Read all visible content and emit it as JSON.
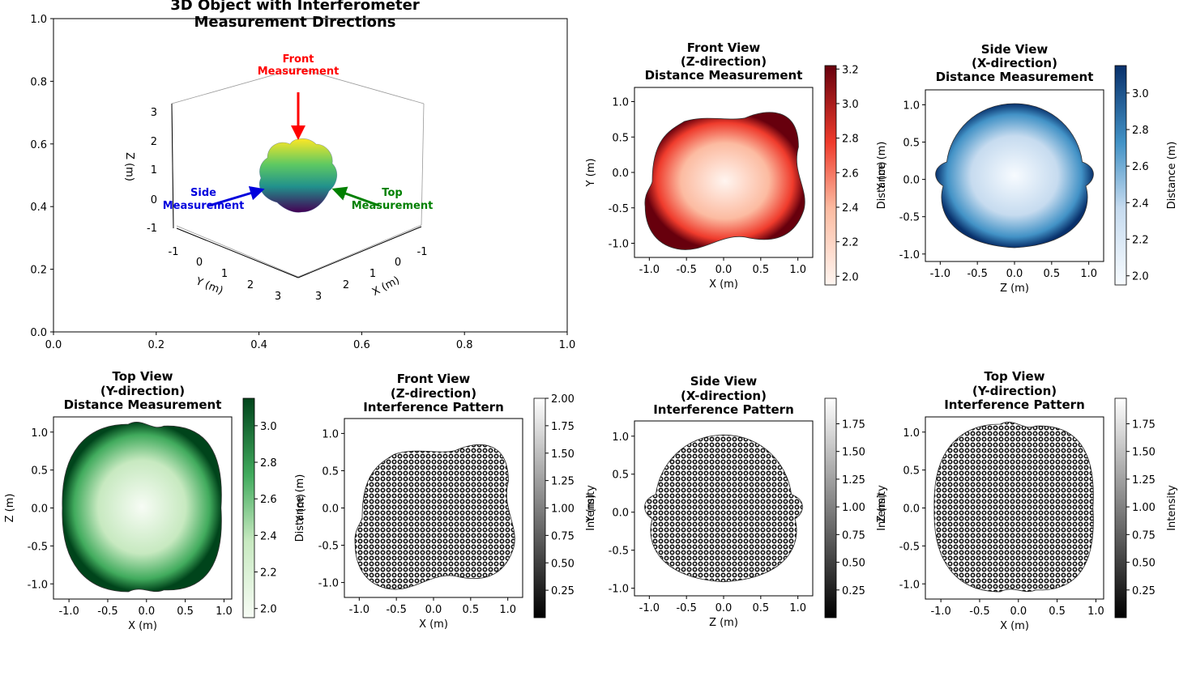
{
  "chart_data": [
    {
      "type": "surface3d",
      "title": [
        "3D Object with Interferometer",
        "Measurement Directions"
      ],
      "outer_axes": {
        "xlim": [
          0,
          1
        ],
        "ylim": [
          0,
          1
        ],
        "xticks": [
          "0.0",
          "0.2",
          "0.4",
          "0.6",
          "0.8",
          "1.0"
        ],
        "yticks": [
          "0.0",
          "0.2",
          "0.4",
          "0.6",
          "0.8",
          "1.0"
        ]
      },
      "axes3d": {
        "xlabel": "X (m)",
        "ylabel": "Y (m)",
        "zlabel": "Z (m)",
        "xticks": [
          "-1",
          "0",
          "1",
          "2",
          "3"
        ],
        "yticks": [
          "-1",
          "0",
          "1",
          "2",
          "3"
        ],
        "zticks": [
          "-1",
          "0",
          "1",
          "2",
          "3"
        ]
      },
      "annotations": [
        {
          "text": [
            "Front",
            "Measurement"
          ],
          "color": "#ff0000"
        },
        {
          "text": [
            "Side",
            "Measurement"
          ],
          "color": "#0000dd"
        },
        {
          "text": [
            "Top",
            "Measurement"
          ],
          "color": "#008000"
        }
      ]
    },
    {
      "type": "heatmap",
      "title": [
        "Front View",
        "(Z-direction)",
        "Distance Measurement"
      ],
      "xlabel": "X (m)",
      "ylabel": "Y (m)",
      "xlim": [
        -1.2,
        1.2
      ],
      "ylim": [
        -1.2,
        1.2
      ],
      "xticks": [
        "-1.0",
        "-0.5",
        "0.0",
        "0.5",
        "1.0"
      ],
      "yticks": [
        "1.0",
        "0.5",
        "0.0",
        "-0.5",
        "-1.0"
      ],
      "colorbar": {
        "label": "Distance (m)",
        "range": [
          1.95,
          3.22
        ],
        "ticks": [
          "3.2",
          "3.0",
          "2.8",
          "2.6",
          "2.4",
          "2.2",
          "2.0"
        ],
        "tick_values": [
          3.2,
          3.0,
          2.8,
          2.6,
          2.4,
          2.2,
          2.0
        ],
        "colormap": "Reds"
      }
    },
    {
      "type": "heatmap",
      "title": [
        "Side View",
        "(X-direction)",
        "Distance Measurement"
      ],
      "xlabel": "Z (m)",
      "ylabel": "Y (m)",
      "xlim": [
        -1.2,
        1.2
      ],
      "ylim": [
        -1.1,
        1.2
      ],
      "xticks": [
        "-1.0",
        "-0.5",
        "0.0",
        "0.5",
        "1.0"
      ],
      "yticks": [
        "1.0",
        "0.5",
        "0.0",
        "-0.5",
        "-1.0"
      ],
      "colorbar": {
        "label": "Distance (m)",
        "range": [
          1.95,
          3.15
        ],
        "ticks": [
          "3.0",
          "2.8",
          "2.6",
          "2.4",
          "2.2",
          "2.0"
        ],
        "tick_values": [
          3.0,
          2.8,
          2.6,
          2.4,
          2.2,
          2.0
        ],
        "colormap": "Blues"
      }
    },
    {
      "type": "heatmap",
      "title": [
        "Top View",
        "(Y-direction)",
        "Distance Measurement"
      ],
      "xlabel": "X (m)",
      "ylabel": "Z (m)",
      "xlim": [
        -1.2,
        1.1
      ],
      "ylim": [
        -1.2,
        1.2
      ],
      "xticks": [
        "-1.0",
        "-0.5",
        "0.0",
        "0.5",
        "1.0"
      ],
      "yticks": [
        "1.0",
        "0.5",
        "0.0",
        "-0.5",
        "-1.0"
      ],
      "colorbar": {
        "label": "Distance (m)",
        "range": [
          1.95,
          3.15
        ],
        "ticks": [
          "3.0",
          "2.8",
          "2.6",
          "2.4",
          "2.2",
          "2.0"
        ],
        "tick_values": [
          3.0,
          2.8,
          2.6,
          2.4,
          2.2,
          2.0
        ],
        "colormap": "Greens"
      }
    },
    {
      "type": "heatmap",
      "title": [
        "Front View",
        "(Z-direction)",
        "Interference Pattern"
      ],
      "xlabel": "X (m)",
      "ylabel": "Y (m)",
      "xlim": [
        -1.2,
        1.2
      ],
      "ylim": [
        -1.2,
        1.2
      ],
      "xticks": [
        "-1.0",
        "-0.5",
        "0.0",
        "0.5",
        "1.0"
      ],
      "yticks": [
        "1.0",
        "0.5",
        "0.0",
        "-0.5",
        "-1.0"
      ],
      "colorbar": {
        "label": "Intensity",
        "range": [
          0.0,
          2.0
        ],
        "ticks": [
          "2.00",
          "1.75",
          "1.50",
          "1.25",
          "1.00",
          "0.75",
          "0.50",
          "0.25"
        ],
        "tick_values": [
          2.0,
          1.75,
          1.5,
          1.25,
          1.0,
          0.75,
          0.5,
          0.25
        ],
        "colormap": "gray"
      }
    },
    {
      "type": "heatmap",
      "title": [
        "Side View",
        "(X-direction)",
        "Interference Pattern"
      ],
      "xlabel": "Z (m)",
      "ylabel": "Y (m)",
      "xlim": [
        -1.2,
        1.2
      ],
      "ylim": [
        -1.1,
        1.2
      ],
      "xticks": [
        "-1.0",
        "-0.5",
        "0.0",
        "0.5",
        "1.0"
      ],
      "yticks": [
        "1.0",
        "0.5",
        "0.0",
        "-0.5",
        "-1.0"
      ],
      "colorbar": {
        "label": "Intensity",
        "range": [
          0.0,
          1.98
        ],
        "ticks": [
          "1.75",
          "1.50",
          "1.25",
          "1.00",
          "0.75",
          "0.50",
          "0.25"
        ],
        "tick_values": [
          1.75,
          1.5,
          1.25,
          1.0,
          0.75,
          0.5,
          0.25
        ],
        "colormap": "gray"
      }
    },
    {
      "type": "heatmap",
      "title": [
        "Top View",
        "(Y-direction)",
        "Interference Pattern"
      ],
      "xlabel": "X (m)",
      "ylabel": "Z (m)",
      "xlim": [
        -1.2,
        1.1
      ],
      "ylim": [
        -1.2,
        1.2
      ],
      "xticks": [
        "-1.0",
        "-0.5",
        "0.0",
        "0.5",
        "1.0"
      ],
      "yticks": [
        "1.0",
        "0.5",
        "0.0",
        "-0.5",
        "-1.0"
      ],
      "colorbar": {
        "label": "Intensity",
        "range": [
          0.0,
          1.98
        ],
        "ticks": [
          "1.75",
          "1.50",
          "1.25",
          "1.00",
          "0.75",
          "0.50",
          "0.25"
        ],
        "tick_values": [
          1.75,
          1.5,
          1.25,
          1.0,
          0.75,
          0.5,
          0.25
        ],
        "colormap": "gray"
      }
    }
  ]
}
